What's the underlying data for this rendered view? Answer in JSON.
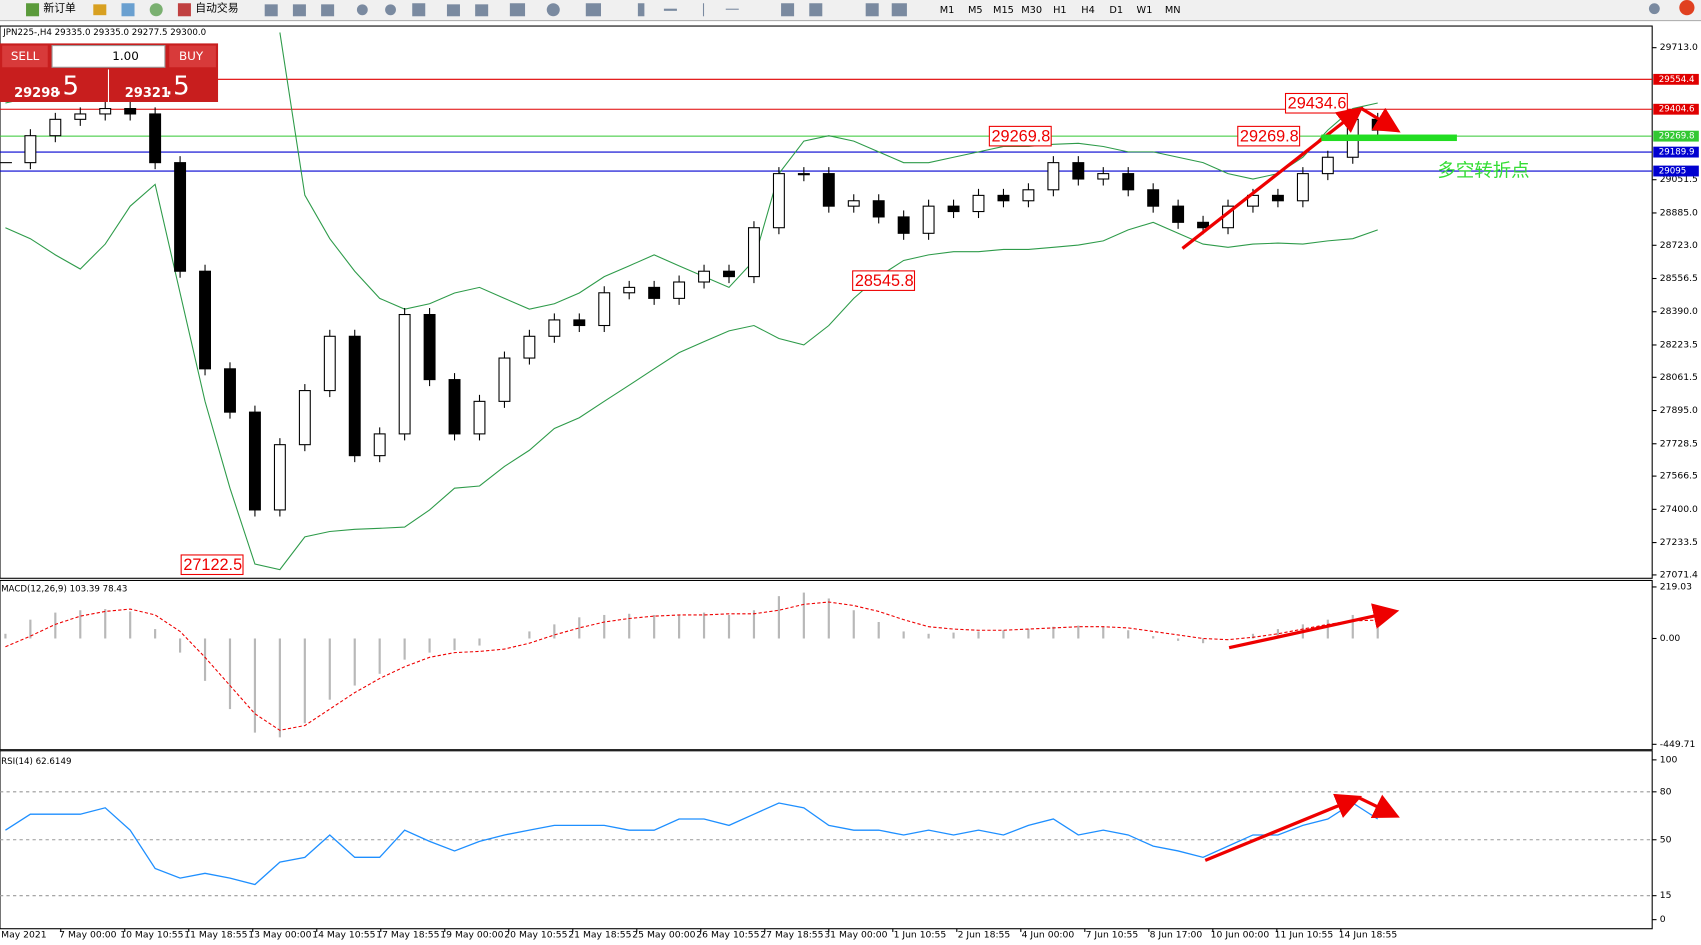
{
  "toolbar": {
    "new_order": "新订单",
    "auto_trading": "自动交易",
    "timeframes": [
      "M1",
      "M5",
      "M15",
      "M30",
      "H1",
      "H4",
      "D1",
      "W1",
      "MN"
    ]
  },
  "chart_header": "JPN225-,H4  29335.0 29335.0 29277.5 29300.0",
  "one_click": {
    "sell": "SELL",
    "lot": "1.00",
    "buy": "BUY",
    "bid_main": "29298",
    "bid_frac": ".5",
    "ask_main": "29321",
    "ask_frac": ".5"
  },
  "time_axis_labels": [
    "May 2021",
    "7 May 00:00",
    "10 May 10:55",
    "11 May 18:55",
    "13 May 00:00",
    "14 May 10:55",
    "17 May 18:55",
    "19 May 00:00",
    "20 May 10:55",
    "21 May 18:55",
    "25 May 00:00",
    "26 May 10:55",
    "27 May 18:55",
    "31 May 00:00",
    "1 Jun 10:55",
    "2 Jun 18:55",
    "4 Jun 00:00",
    "7 Jun 10:55",
    "8 Jun 17:00",
    "10 Jun 00:00",
    "11 Jun 10:55",
    "14 Jun 18:55"
  ],
  "chart_data": [
    {
      "type": "candlestick",
      "closes": [
        29137,
        29272,
        29354,
        29381,
        29408,
        29381,
        29137,
        28593,
        28104,
        27887,
        27397,
        27724,
        27995,
        28267,
        27669,
        27778,
        28376,
        28050,
        27778,
        27941,
        28158,
        28267,
        28349,
        28321,
        28485,
        28512,
        28457,
        28539,
        28593,
        28566,
        28811,
        29082,
        29082,
        28919,
        28946,
        28865,
        28783,
        28919,
        28892,
        28973,
        28946,
        29001,
        29137,
        29055,
        29082,
        29001,
        28919,
        28838,
        28811,
        28919,
        28973,
        28946,
        29082,
        29164,
        29354,
        29300
      ],
      "upper_band": [
        29436,
        29463,
        29490,
        29490,
        29490,
        29463,
        null,
        null,
        null,
        null,
        null,
        29789,
        28974,
        28756,
        28593,
        28457,
        28403,
        28430,
        28484,
        28512,
        28457,
        28403,
        28430,
        28484,
        28566,
        28620,
        28675,
        28620,
        28566,
        28512,
        28647,
        29082,
        29245,
        29272,
        29245,
        29191,
        29137,
        29137,
        29164,
        29191,
        29218,
        29218,
        29229,
        29234,
        29218,
        29191,
        29191,
        29164,
        29137,
        29082,
        29055,
        29082,
        29164,
        29300,
        29408,
        29436
      ],
      "lower_band": [
        28811,
        28756,
        28675,
        28604,
        28729,
        28919,
        29028,
        28484,
        27941,
        27506,
        27126,
        27098,
        27262,
        27289,
        27300,
        27305,
        27311,
        27397,
        27506,
        27517,
        27615,
        27696,
        27805,
        27859,
        27941,
        28022,
        28104,
        28185,
        28240,
        28294,
        28321,
        28256,
        28224,
        28321,
        28457,
        28566,
        28647,
        28675,
        28691,
        28691,
        28702,
        28702,
        28713,
        28724,
        28745,
        28800,
        28838,
        28783,
        28729,
        28713,
        28729,
        28734,
        28729,
        28745,
        28756,
        28800
      ],
      "band_color": "#2e9b4a",
      "ylim": [
        27060,
        29816
      ],
      "yticks": [
        {
          "value": 29713,
          "label": "29713.0"
        },
        29051.5,
        {
          "value": 28885,
          "label": "28885.0"
        },
        {
          "value": 28723,
          "label": "28723.0"
        },
        28556.5,
        {
          "value": 28390,
          "label": "28390.0"
        },
        28223.5,
        28061.5,
        {
          "value": 27895,
          "label": "27895.0"
        },
        27728.5,
        27566.5,
        {
          "value": 27400,
          "label": "27400.0"
        },
        27233.5,
        27071.4
      ],
      "levels": [
        {
          "value": 29554.4,
          "color": "#e00000"
        },
        {
          "value": 29404.6,
          "color": "#e00000"
        },
        {
          "value": 29269.8,
          "color": "#32c832"
        },
        {
          "value": 29189.9,
          "color": "#0000d0"
        },
        {
          "value": 29095,
          "color": "#0000d0"
        }
      ],
      "annotations": [
        29434.6,
        29269.8,
        29269.8,
        28545.8,
        27122.5
      ],
      "annotation_text": "多空转折点"
    },
    {
      "type": "macd",
      "label": "MACD(12,26,9) 103.39 78.43",
      "histogram": [
        20,
        80,
        110,
        120,
        125,
        115,
        40,
        -60,
        -180,
        -300,
        -400,
        -420,
        -360,
        -260,
        -200,
        -150,
        -90,
        -60,
        -50,
        -30,
        0,
        30,
        60,
        90,
        100,
        105,
        100,
        100,
        110,
        100,
        120,
        180,
        195,
        170,
        120,
        70,
        30,
        20,
        25,
        30,
        35,
        40,
        50,
        55,
        50,
        35,
        10,
        -10,
        -20,
        0,
        20,
        40,
        60,
        80,
        100,
        95
      ],
      "signal": [
        -35,
        10,
        60,
        95,
        115,
        125,
        100,
        30,
        -80,
        -200,
        -320,
        -390,
        -370,
        -300,
        -230,
        -170,
        -120,
        -80,
        -60,
        -55,
        -45,
        -20,
        15,
        45,
        70,
        85,
        95,
        100,
        100,
        105,
        105,
        120,
        145,
        155,
        140,
        115,
        80,
        50,
        40,
        35,
        35,
        40,
        45,
        50,
        50,
        45,
        30,
        15,
        0,
        -5,
        5,
        20,
        40,
        60,
        75,
        78
      ],
      "ylim": [
        -468,
        242
      ],
      "yticks": [
        219.03,
        {
          "value": 0,
          "label": "0.00"
        },
        -449.71
      ]
    },
    {
      "type": "line",
      "label": "RSI(14) 62.6149",
      "color": "#1e8fff",
      "values": [
        56,
        66,
        66,
        66,
        70,
        56,
        32,
        26,
        29,
        26,
        22,
        36,
        39,
        53,
        39,
        39,
        56,
        49,
        43,
        49,
        53,
        56,
        59,
        59,
        59,
        56,
        56,
        63,
        63,
        59,
        66,
        73,
        70,
        59,
        56,
        56,
        53,
        56,
        53,
        56,
        53,
        59,
        63,
        53,
        56,
        53,
        46,
        43,
        39,
        46,
        53,
        53,
        59,
        63,
        73,
        63
      ],
      "ylim": [
        -5,
        105
      ],
      "yticks": [
        100,
        80,
        50,
        15,
        0
      ],
      "levels": [
        80,
        50,
        15
      ]
    }
  ]
}
